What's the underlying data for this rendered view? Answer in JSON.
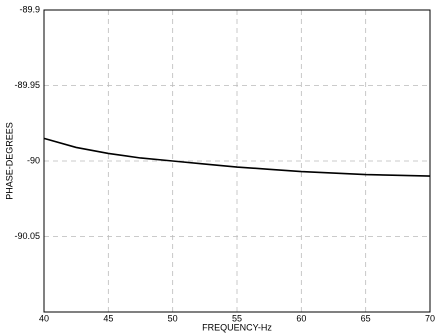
{
  "chart_data": {
    "type": "line",
    "xlabel": "FREQUENCY-Hz",
    "ylabel": "PHASE-DEGREES",
    "x": [
      40,
      42.5,
      45,
      47.5,
      50,
      52.5,
      55,
      57.5,
      60,
      62.5,
      65,
      67.5,
      70
    ],
    "values": [
      -89.985,
      -89.991,
      -89.995,
      -89.998,
      -90.0,
      -90.002,
      -90.004,
      -90.0055,
      -90.007,
      -90.008,
      -90.009,
      -90.0095,
      -90.01
    ],
    "color": "#000000",
    "xlim": [
      40,
      70
    ],
    "xticks": [
      40,
      45,
      50,
      55,
      60,
      65,
      70
    ],
    "ylim": [
      -90.1,
      -89.9
    ],
    "yticks": [
      -89.9,
      -89.95,
      -90,
      -90.05
    ],
    "grid": true
  }
}
